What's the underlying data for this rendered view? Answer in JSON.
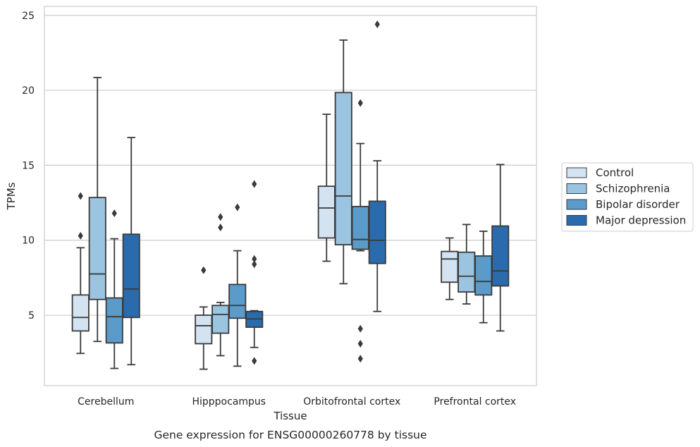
{
  "chart_data": {
    "type": "boxplot",
    "caption": "Gene expression for ENSG00000260778 by tissue",
    "xlabel": "Tissue",
    "ylabel": "TPMs",
    "ylim": [
      0.3,
      25.6
    ],
    "yticks": [
      5,
      10,
      15,
      20,
      25
    ],
    "grid": "horizontal",
    "legend_position": "right",
    "categories": [
      "Cerebellum",
      "Hipppocampus",
      "Orbitofrontal cortex",
      "Prefrontal cortex"
    ],
    "series": [
      {
        "name": "Control",
        "color": "#d3e3f1",
        "boxes": [
          {
            "whisker_low": 2.45,
            "q1": 3.95,
            "median": 4.85,
            "q3": 6.35,
            "whisker_high": 9.5,
            "outliers": [
              10.3,
              12.95
            ]
          },
          {
            "whisker_low": 1.4,
            "q1": 3.1,
            "median": 4.3,
            "q3": 5.0,
            "whisker_high": 5.55,
            "outliers": [
              8.0
            ]
          },
          {
            "whisker_low": 8.6,
            "q1": 10.15,
            "median": 12.15,
            "q3": 13.6,
            "whisker_high": 18.4,
            "outliers": []
          },
          {
            "whisker_low": 6.05,
            "q1": 7.2,
            "median": 8.75,
            "q3": 9.25,
            "whisker_high": 10.15,
            "outliers": []
          }
        ]
      },
      {
        "name": "Schizophrenia",
        "color": "#9ac4e0",
        "boxes": [
          {
            "whisker_low": 3.25,
            "q1": 6.05,
            "median": 7.75,
            "q3": 12.85,
            "whisker_high": 20.85,
            "outliers": []
          },
          {
            "whisker_low": 2.3,
            "q1": 3.8,
            "median": 5.05,
            "q3": 5.65,
            "whisker_high": 5.85,
            "outliers": [
              10.85,
              11.55
            ]
          },
          {
            "whisker_low": 7.1,
            "q1": 9.7,
            "median": 12.95,
            "q3": 19.85,
            "whisker_high": 23.35,
            "outliers": []
          },
          {
            "whisker_low": 5.75,
            "q1": 6.55,
            "median": 7.6,
            "q3": 9.2,
            "whisker_high": 11.05,
            "outliers": []
          }
        ]
      },
      {
        "name": "Bipolar disorder",
        "color": "#5a9bc9",
        "boxes": [
          {
            "whisker_low": 1.45,
            "q1": 3.15,
            "median": 4.9,
            "q3": 6.15,
            "whisker_high": 10.1,
            "outliers": [
              11.8
            ]
          },
          {
            "whisker_low": 1.6,
            "q1": 4.8,
            "median": 5.65,
            "q3": 7.05,
            "whisker_high": 9.3,
            "outliers": [
              12.2
            ]
          },
          {
            "whisker_low": 9.3,
            "q1": 9.4,
            "median": 10.05,
            "q3": 12.25,
            "whisker_high": 16.45,
            "outliers": [
              19.15,
              4.1,
              3.1,
              2.1
            ]
          },
          {
            "whisker_low": 4.5,
            "q1": 6.35,
            "median": 7.25,
            "q3": 8.95,
            "whisker_high": 10.6,
            "outliers": []
          }
        ]
      },
      {
        "name": "Major depression",
        "color": "#2a6bae",
        "boxes": [
          {
            "whisker_low": 1.7,
            "q1": 4.85,
            "median": 6.75,
            "q3": 10.4,
            "whisker_high": 16.85,
            "outliers": []
          },
          {
            "whisker_low": 2.85,
            "q1": 4.2,
            "median": 4.75,
            "q3": 5.25,
            "whisker_high": 5.3,
            "outliers": [
              13.75,
              8.75,
              8.4,
              1.95
            ]
          },
          {
            "whisker_low": 5.25,
            "q1": 8.45,
            "median": 10.0,
            "q3": 12.6,
            "whisker_high": 15.3,
            "outliers": [
              24.4
            ]
          },
          {
            "whisker_low": 3.95,
            "q1": 6.95,
            "median": 7.95,
            "q3": 10.95,
            "whisker_high": 15.05,
            "outliers": []
          }
        ]
      }
    ]
  }
}
